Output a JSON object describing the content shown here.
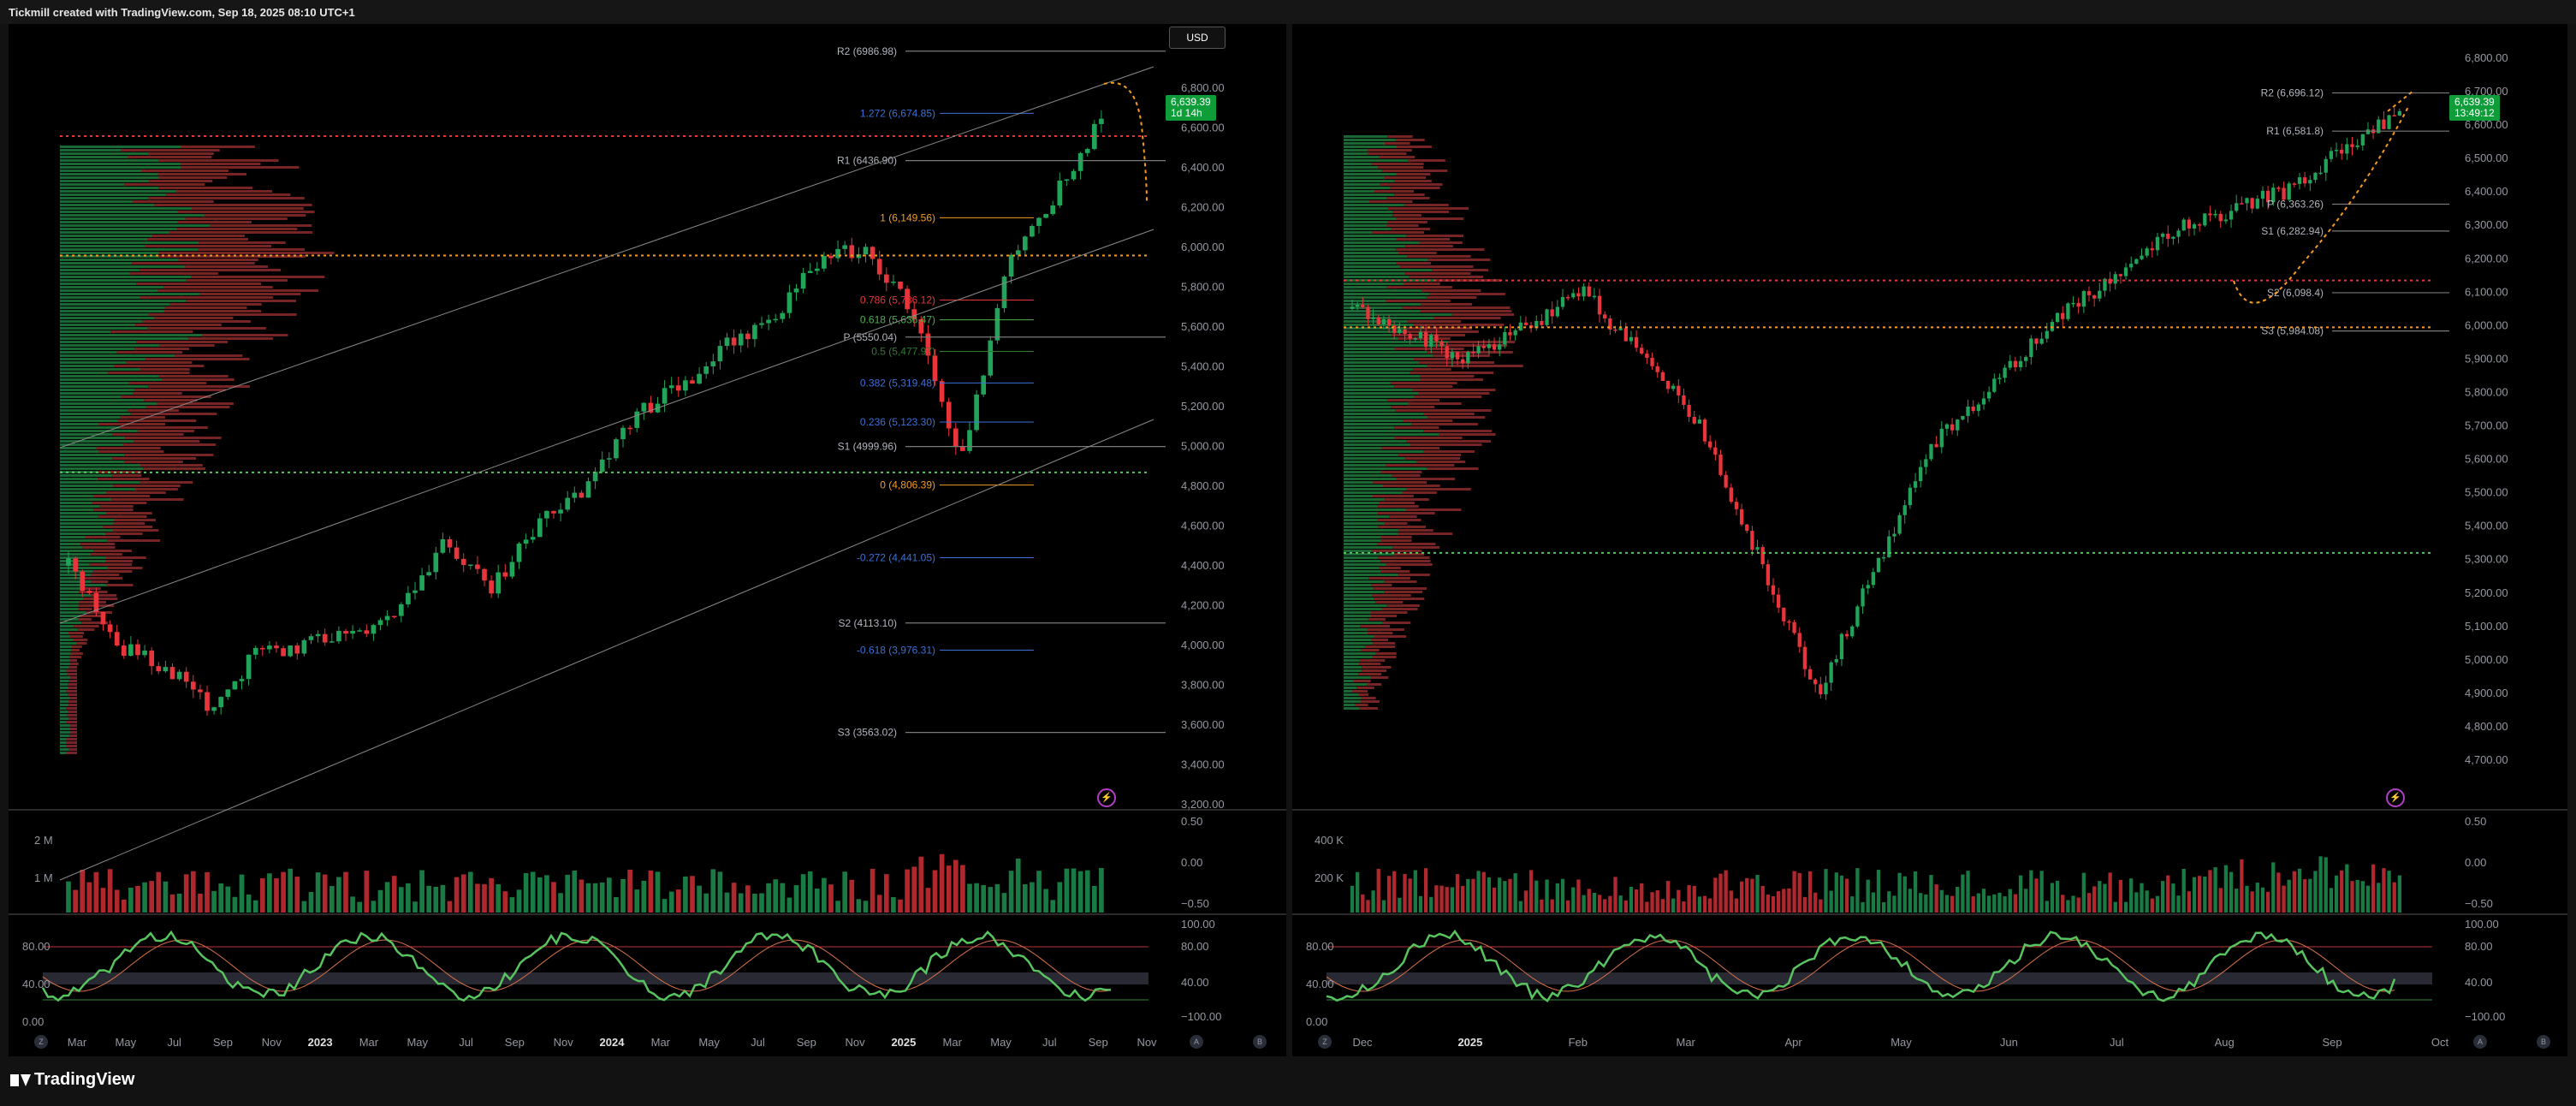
{
  "header": {
    "text": "Tickmill created with TradingView.com, Sep 18, 2025 08:10 UTC+1"
  },
  "footer": {
    "brand": "TradingView"
  },
  "colors": {
    "up": "#22a35a",
    "down": "#e8353c",
    "profile_green": "#1e7a3c",
    "profile_red": "#8c2a2a",
    "orange": "#f59a23",
    "blue": "#3d6fd8",
    "grid": "#1c1c1c"
  },
  "icons": [
    "flash-icon",
    "settings-icon",
    "logo-icon"
  ],
  "left": {
    "currency": "USD",
    "price_label": "6,639.39",
    "countdown": "1d 14h",
    "price_axis": [
      "6,800.00",
      "6,600.00",
      "6,400.00",
      "6,200.00",
      "6,000.00",
      "5,800.00",
      "5,600.00",
      "5,400.00",
      "5,200.00",
      "5,000.00",
      "4,800.00",
      "4,600.00",
      "4,400.00",
      "4,200.00",
      "4,000.00",
      "3,800.00",
      "3,600.00",
      "3,400.00",
      "3,200.00"
    ],
    "volume_axis": [
      "0.50",
      "0.00",
      "−0.50"
    ],
    "volume_left_labels": [
      "2 M",
      "1 M"
    ],
    "osc_axis": [
      "100.00",
      "80.00",
      "40.00",
      "−100.00"
    ],
    "osc_left_labels": [
      "80.00",
      "40.00",
      "0.00"
    ],
    "time_axis": [
      "Mar",
      "May",
      "Jul",
      "Sep",
      "Nov",
      "2023",
      "Mar",
      "May",
      "Jul",
      "Sep",
      "Nov",
      "2024",
      "Mar",
      "May",
      "Jul",
      "Sep",
      "Nov",
      "2025",
      "Mar",
      "May",
      "Jul",
      "Sep",
      "Nov"
    ],
    "pivots": [
      {
        "label": "R2 (6986.98)"
      },
      {
        "label": "R1 (6436.90)"
      },
      {
        "label": "P (5550.04)"
      },
      {
        "label": "S1 (4999.96)"
      },
      {
        "label": "S2 (4113.10)"
      },
      {
        "label": "S3 (3563.02)"
      }
    ],
    "fibs": [
      {
        "label": "1.272 (6,674.85)"
      },
      {
        "label": "1 (6,149.56)"
      },
      {
        "label": "0.786 (5,736.12)"
      },
      {
        "label": "0.618 (5,636.47)"
      },
      {
        "label": "0.5 (5,477.97)"
      },
      {
        "label": "0.382 (5,319.48)"
      },
      {
        "label": "0.236 (5,123.30)"
      },
      {
        "label": "0 (4,806.39)"
      },
      {
        "label": "-0.272 (4,441.05)"
      },
      {
        "label": "-0.618 (3,976.31)"
      }
    ]
  },
  "right": {
    "price_label": "6,639.39",
    "countdown": "13:49:12",
    "price_axis": [
      "6,800.00",
      "6,700.00",
      "6,600.00",
      "6,500.00",
      "6,400.00",
      "6,300.00",
      "6,200.00",
      "6,100.00",
      "6,000.00",
      "5,900.00",
      "5,800.00",
      "5,700.00",
      "5,600.00",
      "5,500.00",
      "5,400.00",
      "5,300.00",
      "5,200.00",
      "5,100.00",
      "5,000.00",
      "4,900.00",
      "4,800.00",
      "4,700.00"
    ],
    "volume_axis": [
      "0.50",
      "0.00",
      "−0.50"
    ],
    "volume_left_labels": [
      "400 K",
      "200 K"
    ],
    "osc_axis": [
      "100.00",
      "80.00",
      "40.00",
      "−100.00"
    ],
    "osc_left_labels": [
      "80.00",
      "40.00",
      "0.00"
    ],
    "time_axis": [
      "Dec",
      "2025",
      "Feb",
      "Mar",
      "Apr",
      "May",
      "Jun",
      "Jul",
      "Aug",
      "Sep",
      "Oct"
    ],
    "pivots": [
      {
        "label": "R2 (6,696.12)"
      },
      {
        "label": "R1 (6,581.8)"
      },
      {
        "label": "P (6,363.26)"
      },
      {
        "label": "S1 (6,282.94)"
      },
      {
        "label": "S2 (6,098.4)"
      },
      {
        "label": "S3 (5,984.08)"
      }
    ]
  },
  "chart_data": [
    {
      "type": "line",
      "xlabel": "",
      "ylabel": "",
      "ylim": [
        3200,
        6900
      ],
      "x": [
        "Mar 2022",
        "May 2022",
        "Jul 2022",
        "Sep 2022",
        "Nov 2022",
        "Jan 2023",
        "Mar 2023",
        "May 2023",
        "Jul 2023",
        "Sep 2023",
        "Nov 2023",
        "Jan 2024",
        "Mar 2024",
        "May 2024",
        "Jul 2024",
        "Sep 2024",
        "Nov 2024",
        "Jan 2025",
        "Mar 2025",
        "Apr 2025",
        "May 2025",
        "Jul 2025",
        "Sep 2025"
      ],
      "series": [
        {
          "values": [
            4400,
            4000,
            3900,
            3700,
            3950,
            4000,
            4050,
            4150,
            4500,
            4300,
            4600,
            4800,
            5150,
            5300,
            5500,
            5650,
            5950,
            6000,
            5650,
            4900,
            5900,
            6250,
            6639.39
          ]
        }
      ],
      "levels": {
        "R2": 6986.98,
        "R1": 6436.9,
        "P": 5550.04,
        "S1": 4999.96,
        "S2": 4113.1,
        "S3": 3563.02
      }
    },
    {
      "type": "line",
      "xlabel": "",
      "ylabel": "",
      "ylim": [
        4700,
        6800
      ],
      "x": [
        "Dec 2024",
        "Jan 2025",
        "Feb 2025",
        "Mar 2025",
        "Apr 2025",
        "May 2025",
        "Jun 2025",
        "Jul 2025",
        "Aug 2025",
        "Sep 2025"
      ],
      "series": [
        {
          "values": [
            6050,
            5900,
            6100,
            5700,
            4900,
            5650,
            6000,
            6280,
            6400,
            6639.39
          ]
        }
      ],
      "levels": {
        "R2": 6696.12,
        "R1": 6581.8,
        "P": 6363.26,
        "S1": 6282.94,
        "S2": 6098.4,
        "S3": 5984.08
      }
    }
  ]
}
